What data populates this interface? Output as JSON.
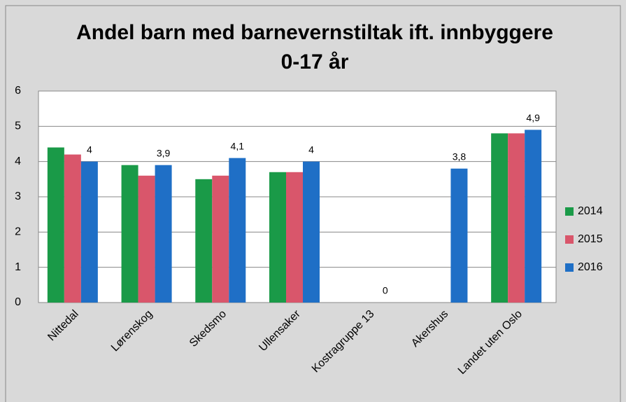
{
  "chart_data": {
    "type": "bar",
    "title": "Andel barn med barnevernstiltak ift. innbyggere 0-17 år",
    "categories": [
      "Nittedal",
      "Lørenskog",
      "Skedsmo",
      "Ullensaker",
      "Kostragruppe 13",
      "Akershus",
      "Landet uten Oslo"
    ],
    "series": [
      {
        "name": "2014",
        "color": "#1a9a48",
        "values": [
          4.4,
          3.9,
          3.5,
          3.7,
          null,
          null,
          4.8
        ]
      },
      {
        "name": "2015",
        "color": "#d9566b",
        "values": [
          4.2,
          3.6,
          3.6,
          3.7,
          null,
          null,
          4.8
        ]
      },
      {
        "name": "2016",
        "color": "#1f6fc6",
        "values": [
          4,
          3.9,
          4.1,
          4,
          0,
          3.8,
          4.9
        ],
        "value_labels": [
          "4",
          "3,9",
          "4,1",
          "4",
          "0",
          "3,8",
          "4,9"
        ]
      }
    ],
    "ylim": [
      0,
      6
    ],
    "yticks": [
      0,
      1,
      2,
      3,
      4,
      5,
      6
    ],
    "grid": true,
    "legend": "right"
  }
}
